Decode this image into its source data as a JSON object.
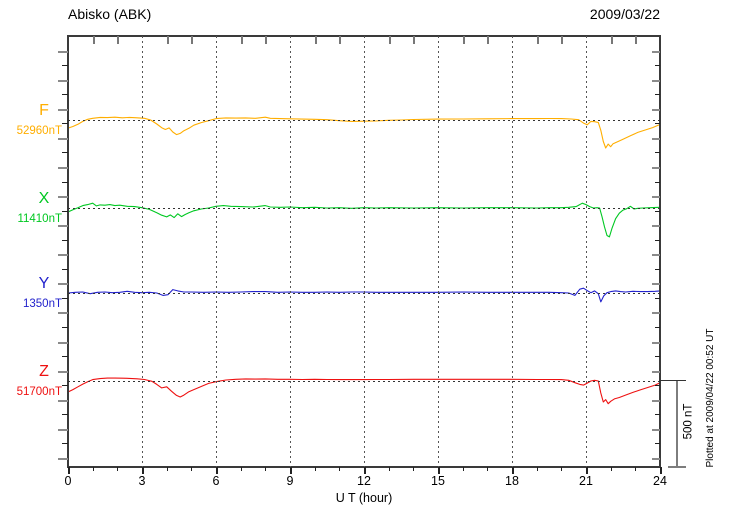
{
  "header": {
    "title": "Abisko (ABK)",
    "date": "2009/03/22"
  },
  "footer_note": "Plotted at 2009/04/22 00:52 UT",
  "x_axis": {
    "label": "U T (hour)",
    "min": 0,
    "max": 24,
    "major_tick": 3,
    "minor_tick": 1,
    "tick_labels": [
      "0",
      "3",
      "6",
      "9",
      "12",
      "15",
      "18",
      "21",
      "24"
    ]
  },
  "scale_bar": {
    "label": "500 nT",
    "nT": 500
  },
  "chart_data": {
    "type": "line",
    "title": "Abisko (ABK) magnetogram",
    "subtitle": "2009/03/22",
    "xlabel": "U T (hour)",
    "xlim": [
      0,
      24
    ],
    "grid": "dotted vertical every 3 h, dotted horizontal baseline per trace",
    "baseline_spacing_nT": 500,
    "scale": {
      "bar_nT": 500,
      "label": "500 nT"
    },
    "series": [
      {
        "name": "F",
        "baseline_label": "52960nT",
        "baseline_nT": 52960,
        "color": "#FFAE00",
        "points": [
          [
            0,
            -47
          ],
          [
            0.2,
            -38
          ],
          [
            0.4,
            -25
          ],
          [
            0.6,
            -8
          ],
          [
            0.8,
            4
          ],
          [
            1.0,
            10
          ],
          [
            1.3,
            15
          ],
          [
            1.6,
            14
          ],
          [
            1.9,
            16
          ],
          [
            2.2,
            13
          ],
          [
            2.5,
            15
          ],
          [
            2.8,
            13
          ],
          [
            3.1,
            10
          ],
          [
            3.35,
            0
          ],
          [
            3.6,
            -23
          ],
          [
            3.8,
            -45
          ],
          [
            3.95,
            -55
          ],
          [
            4.1,
            -46
          ],
          [
            4.25,
            -70
          ],
          [
            4.4,
            -85
          ],
          [
            4.55,
            -78
          ],
          [
            4.7,
            -62
          ],
          [
            4.9,
            -48
          ],
          [
            5.1,
            -30
          ],
          [
            5.4,
            -15
          ],
          [
            5.7,
            -4
          ],
          [
            6.0,
            8
          ],
          [
            6.4,
            12
          ],
          [
            6.8,
            11
          ],
          [
            7.2,
            12
          ],
          [
            7.6,
            10
          ],
          [
            8.0,
            16
          ],
          [
            8.2,
            10
          ],
          [
            8.6,
            8
          ],
          [
            9.0,
            7
          ],
          [
            9.5,
            5
          ],
          [
            10.0,
            4
          ],
          [
            10.5,
            2
          ],
          [
            11.0,
            -4
          ],
          [
            11.5,
            -8
          ],
          [
            12.0,
            -7
          ],
          [
            12.5,
            -5
          ],
          [
            13.0,
            -2
          ],
          [
            13.5,
            0
          ],
          [
            14.0,
            3
          ],
          [
            15.0,
            5
          ],
          [
            16.0,
            6
          ],
          [
            17.0,
            7
          ],
          [
            18.0,
            8
          ],
          [
            19.0,
            8
          ],
          [
            19.5,
            9
          ],
          [
            20.0,
            8
          ],
          [
            20.4,
            6
          ],
          [
            20.7,
            2
          ],
          [
            20.9,
            -18
          ],
          [
            21.05,
            -28
          ],
          [
            21.2,
            -8
          ],
          [
            21.35,
            -10
          ],
          [
            21.5,
            -14
          ],
          [
            21.6,
            -60
          ],
          [
            21.7,
            -125
          ],
          [
            21.8,
            -163
          ],
          [
            21.9,
            -140
          ],
          [
            22.0,
            -155
          ],
          [
            22.1,
            -138
          ],
          [
            22.3,
            -125
          ],
          [
            22.5,
            -112
          ],
          [
            22.8,
            -92
          ],
          [
            23.1,
            -72
          ],
          [
            23.4,
            -58
          ],
          [
            23.7,
            -44
          ],
          [
            24,
            -26
          ]
        ]
      },
      {
        "name": "X",
        "baseline_label": "11410nT",
        "baseline_nT": 11410,
        "color": "#00C822",
        "points": [
          [
            0,
            -23
          ],
          [
            0.2,
            -10
          ],
          [
            0.4,
            2
          ],
          [
            0.6,
            14
          ],
          [
            0.8,
            20
          ],
          [
            1.0,
            28
          ],
          [
            1.15,
            12
          ],
          [
            1.3,
            18
          ],
          [
            1.5,
            16
          ],
          [
            1.7,
            20
          ],
          [
            1.9,
            14
          ],
          [
            2.1,
            16
          ],
          [
            2.4,
            10
          ],
          [
            2.7,
            8
          ],
          [
            3.0,
            2
          ],
          [
            3.3,
            -8
          ],
          [
            3.6,
            -28
          ],
          [
            3.8,
            -42
          ],
          [
            4.0,
            -52
          ],
          [
            4.15,
            -40
          ],
          [
            4.3,
            -56
          ],
          [
            4.45,
            -34
          ],
          [
            4.6,
            -50
          ],
          [
            4.75,
            -38
          ],
          [
            4.9,
            -28
          ],
          [
            5.1,
            -16
          ],
          [
            5.4,
            -6
          ],
          [
            5.7,
            0
          ],
          [
            6.0,
            10
          ],
          [
            6.3,
            14
          ],
          [
            6.6,
            10
          ],
          [
            7.0,
            8
          ],
          [
            7.5,
            6
          ],
          [
            8.0,
            14
          ],
          [
            8.2,
            6
          ],
          [
            8.6,
            4
          ],
          [
            9.0,
            6
          ],
          [
            9.5,
            2
          ],
          [
            10.0,
            4
          ],
          [
            10.5,
            0
          ],
          [
            11.0,
            2
          ],
          [
            11.5,
            -2
          ],
          [
            12.0,
            2
          ],
          [
            12.5,
            0
          ],
          [
            13.0,
            2
          ],
          [
            14.0,
            0
          ],
          [
            15.0,
            2
          ],
          [
            16.0,
            0
          ],
          [
            17.0,
            2
          ],
          [
            18.0,
            2
          ],
          [
            19.0,
            0
          ],
          [
            19.5,
            2
          ],
          [
            20.0,
            2
          ],
          [
            20.3,
            4
          ],
          [
            20.6,
            8
          ],
          [
            20.85,
            28
          ],
          [
            21.0,
            20
          ],
          [
            21.15,
            8
          ],
          [
            21.3,
            0
          ],
          [
            21.45,
            2
          ],
          [
            21.55,
            0
          ],
          [
            21.65,
            -50
          ],
          [
            21.75,
            -110
          ],
          [
            21.85,
            -160
          ],
          [
            21.95,
            -168
          ],
          [
            22.05,
            -120
          ],
          [
            22.2,
            -62
          ],
          [
            22.35,
            -30
          ],
          [
            22.5,
            -12
          ],
          [
            22.65,
            -4
          ],
          [
            22.8,
            10
          ],
          [
            22.95,
            -6
          ],
          [
            23.1,
            -2
          ],
          [
            23.3,
            0
          ],
          [
            23.6,
            2
          ],
          [
            24,
            4
          ]
        ]
      },
      {
        "name": "Y",
        "baseline_label": "1350nT",
        "baseline_nT": 1350,
        "color": "#2222CC",
        "points": [
          [
            0,
            0
          ],
          [
            0.3,
            4
          ],
          [
            0.6,
            6
          ],
          [
            0.9,
            -4
          ],
          [
            1.2,
            4
          ],
          [
            1.5,
            6
          ],
          [
            1.8,
            2
          ],
          [
            2.1,
            4
          ],
          [
            2.4,
            10
          ],
          [
            2.7,
            4
          ],
          [
            3.0,
            2
          ],
          [
            3.3,
            4
          ],
          [
            3.6,
            0
          ],
          [
            3.85,
            -14
          ],
          [
            4.05,
            -10
          ],
          [
            4.25,
            20
          ],
          [
            4.45,
            12
          ],
          [
            4.7,
            6
          ],
          [
            5.0,
            6
          ],
          [
            5.5,
            4
          ],
          [
            6.0,
            6
          ],
          [
            6.5,
            4
          ],
          [
            7.0,
            6
          ],
          [
            7.5,
            8
          ],
          [
            8.0,
            8
          ],
          [
            8.5,
            4
          ],
          [
            9.0,
            6
          ],
          [
            9.5,
            4
          ],
          [
            10.0,
            4
          ],
          [
            10.5,
            6
          ],
          [
            11.0,
            4
          ],
          [
            11.5,
            6
          ],
          [
            12.0,
            6
          ],
          [
            12.5,
            4
          ],
          [
            13.0,
            4
          ],
          [
            14.0,
            4
          ],
          [
            15.0,
            4
          ],
          [
            16.0,
            6
          ],
          [
            17.0,
            4
          ],
          [
            18.0,
            4
          ],
          [
            19.0,
            4
          ],
          [
            19.5,
            4
          ],
          [
            20.0,
            2
          ],
          [
            20.3,
            0
          ],
          [
            20.55,
            -14
          ],
          [
            20.75,
            22
          ],
          [
            20.9,
            28
          ],
          [
            21.05,
            14
          ],
          [
            21.2,
            2
          ],
          [
            21.35,
            12
          ],
          [
            21.5,
            -4
          ],
          [
            21.6,
            -52
          ],
          [
            21.72,
            -16
          ],
          [
            21.85,
            2
          ],
          [
            22.0,
            8
          ],
          [
            22.2,
            12
          ],
          [
            22.4,
            8
          ],
          [
            22.6,
            6
          ],
          [
            22.9,
            10
          ],
          [
            23.2,
            8
          ],
          [
            23.5,
            8
          ],
          [
            23.8,
            10
          ],
          [
            24,
            12
          ]
        ]
      },
      {
        "name": "Z",
        "baseline_label": "51700nT",
        "baseline_nT": 51700,
        "color": "#EE1111",
        "points": [
          [
            0,
            -64
          ],
          [
            0.2,
            -50
          ],
          [
            0.4,
            -34
          ],
          [
            0.6,
            -18
          ],
          [
            0.8,
            -4
          ],
          [
            1.0,
            8
          ],
          [
            1.3,
            14
          ],
          [
            1.6,
            17
          ],
          [
            1.9,
            17
          ],
          [
            2.2,
            16
          ],
          [
            2.5,
            15
          ],
          [
            2.8,
            13
          ],
          [
            3.1,
            9
          ],
          [
            3.4,
            -2
          ],
          [
            3.6,
            -20
          ],
          [
            3.8,
            -40
          ],
          [
            4.0,
            -34
          ],
          [
            4.2,
            -60
          ],
          [
            4.4,
            -84
          ],
          [
            4.55,
            -93
          ],
          [
            4.7,
            -82
          ],
          [
            4.9,
            -62
          ],
          [
            5.1,
            -50
          ],
          [
            5.4,
            -32
          ],
          [
            5.7,
            -14
          ],
          [
            6.0,
            -4
          ],
          [
            6.4,
            6
          ],
          [
            6.8,
            10
          ],
          [
            7.2,
            12
          ],
          [
            7.6,
            11
          ],
          [
            8.0,
            12
          ],
          [
            8.5,
            10
          ],
          [
            9.0,
            10
          ],
          [
            9.5,
            9
          ],
          [
            10.0,
            10
          ],
          [
            10.5,
            9
          ],
          [
            11.0,
            8
          ],
          [
            11.5,
            8
          ],
          [
            12.0,
            8
          ],
          [
            12.5,
            9
          ],
          [
            13.0,
            9
          ],
          [
            14.0,
            10
          ],
          [
            15.0,
            10
          ],
          [
            16.0,
            10
          ],
          [
            17.0,
            10
          ],
          [
            18.0,
            10
          ],
          [
            19.0,
            9
          ],
          [
            19.5,
            9
          ],
          [
            20.0,
            8
          ],
          [
            20.3,
            4
          ],
          [
            20.55,
            -10
          ],
          [
            20.75,
            -20
          ],
          [
            20.9,
            -24
          ],
          [
            21.05,
            -12
          ],
          [
            21.2,
            0
          ],
          [
            21.35,
            4
          ],
          [
            21.5,
            0
          ],
          [
            21.6,
            -70
          ],
          [
            21.7,
            -122
          ],
          [
            21.8,
            -108
          ],
          [
            21.9,
            -132
          ],
          [
            22.0,
            -118
          ],
          [
            22.15,
            -104
          ],
          [
            22.35,
            -96
          ],
          [
            22.6,
            -82
          ],
          [
            22.9,
            -66
          ],
          [
            23.2,
            -52
          ],
          [
            23.5,
            -38
          ],
          [
            23.8,
            -24
          ],
          [
            24,
            -10
          ]
        ]
      }
    ]
  }
}
